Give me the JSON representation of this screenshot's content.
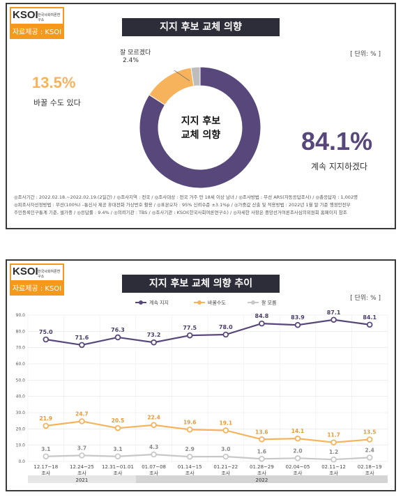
{
  "logo": {
    "brand": "KSOI",
    "subtitle": "한국사회여론연구소",
    "credit": "자료제공 : KSOI"
  },
  "panel1": {
    "title": "지지 후보 교체 의향",
    "unit": "[ 단위: % ]",
    "center_label_1": "지지 후보",
    "center_label_2": "교체 의향",
    "keep_value": "84.1%",
    "keep_label": "계속 지지하겠다",
    "change_value": "13.5%",
    "change_label": "바꿀 수도 있다",
    "unsure_label": "잘 모르겠다",
    "unsure_value": "2.4%",
    "note_line1": "◎조사기간 : 2022.02.18.~2022.02.19.(2일간) / ◎조사지역 : 전국 / ◎조사대상 : 전국 거주 만 18세 이상 남녀 / ◎조사방법 : 무선 ARS(자동응답조사) / ◎총응답자 : 1,002명",
    "note_line2": "◎피조사자선정방법 : 무선(100%) –통신사 제공 휴대전화 가상번호 활용 / ◎표본오차 : 95% 신뢰수준 ±3.1%p / ◎가중값 산출 및 적용방법 : 2022년 1월 말 기준 행정안전부",
    "note_line3": "주민등록인구통계 기준, 셀가중 / ◎응답률 : 9.4% / ◎의뢰기관 : TBS / ◎조사기관 : KSOI(한국사회여론연구소) / ◎자세한 사항은 중앙선거여론조사심의위원회 홈페이지 참조",
    "colors": {
      "keep": "#58477a",
      "change": "#f6b35c",
      "unsure": "#bdbdbd"
    }
  },
  "panel2": {
    "title": "지지 후보 교체 의향 추이",
    "unit": "[ 단위: % ]",
    "year_2021": "2021",
    "year_2022": "2022"
  },
  "chart_data": [
    {
      "type": "pie",
      "title": "지지 후보 교체 의향",
      "categories": [
        "계속 지지하겠다",
        "바꿀 수도 있다",
        "잘 모르겠다"
      ],
      "values": [
        84.1,
        13.5,
        2.4
      ],
      "unit": "%"
    },
    {
      "type": "line",
      "title": "지지 후보 교체 의향 추이",
      "unit": "%",
      "ylim": [
        0,
        90
      ],
      "yticks": [
        "0.0",
        "10.0",
        "20.0",
        "30.0",
        "40.0",
        "50.0",
        "60.0",
        "70.0",
        "80.0",
        "90.0"
      ],
      "categories": [
        "12.17~18\n조사",
        "12.24~25\n조사",
        "12.31~01.01\n조사",
        "01.07~08\n조사",
        "01.14~15\n조사",
        "01.21~22\n조사",
        "01.28~29\n조사",
        "02.04~05\n조사",
        "02.11~12\n조사",
        "02.18~19\n조사"
      ],
      "grid": true,
      "legend": "top",
      "series": [
        {
          "name": "계속 지지",
          "color": "#58477a",
          "values": [
            75.0,
            71.6,
            76.3,
            73.2,
            77.5,
            78.0,
            84.8,
            83.9,
            87.1,
            84.1
          ],
          "labels": [
            "75.0",
            "71.6",
            "76.3",
            "73.2",
            "77.5",
            "78.0",
            "84.8",
            "83.9",
            "87.1",
            "84.1"
          ]
        },
        {
          "name": "바꿀수도",
          "color": "#f6b35c",
          "values": [
            21.9,
            24.7,
            20.5,
            22.4,
            19.6,
            19.1,
            13.6,
            14.1,
            11.7,
            13.5
          ],
          "labels": [
            "21.9",
            "24.7",
            "20.5",
            "22.4",
            "19.6",
            "19.1",
            "13.6",
            "14.1",
            "11.7",
            "13.5"
          ]
        },
        {
          "name": "잘 모름",
          "color": "#c8c8c8",
          "values": [
            3.1,
            3.7,
            3.1,
            4.3,
            2.9,
            3.0,
            1.6,
            2.0,
            1.2,
            2.4
          ],
          "labels": [
            "3.1",
            "3.7",
            "3.1",
            "4.3",
            "2.9",
            "3.0",
            "1.6",
            "2.0",
            "1.2",
            "2.4"
          ]
        }
      ]
    }
  ]
}
